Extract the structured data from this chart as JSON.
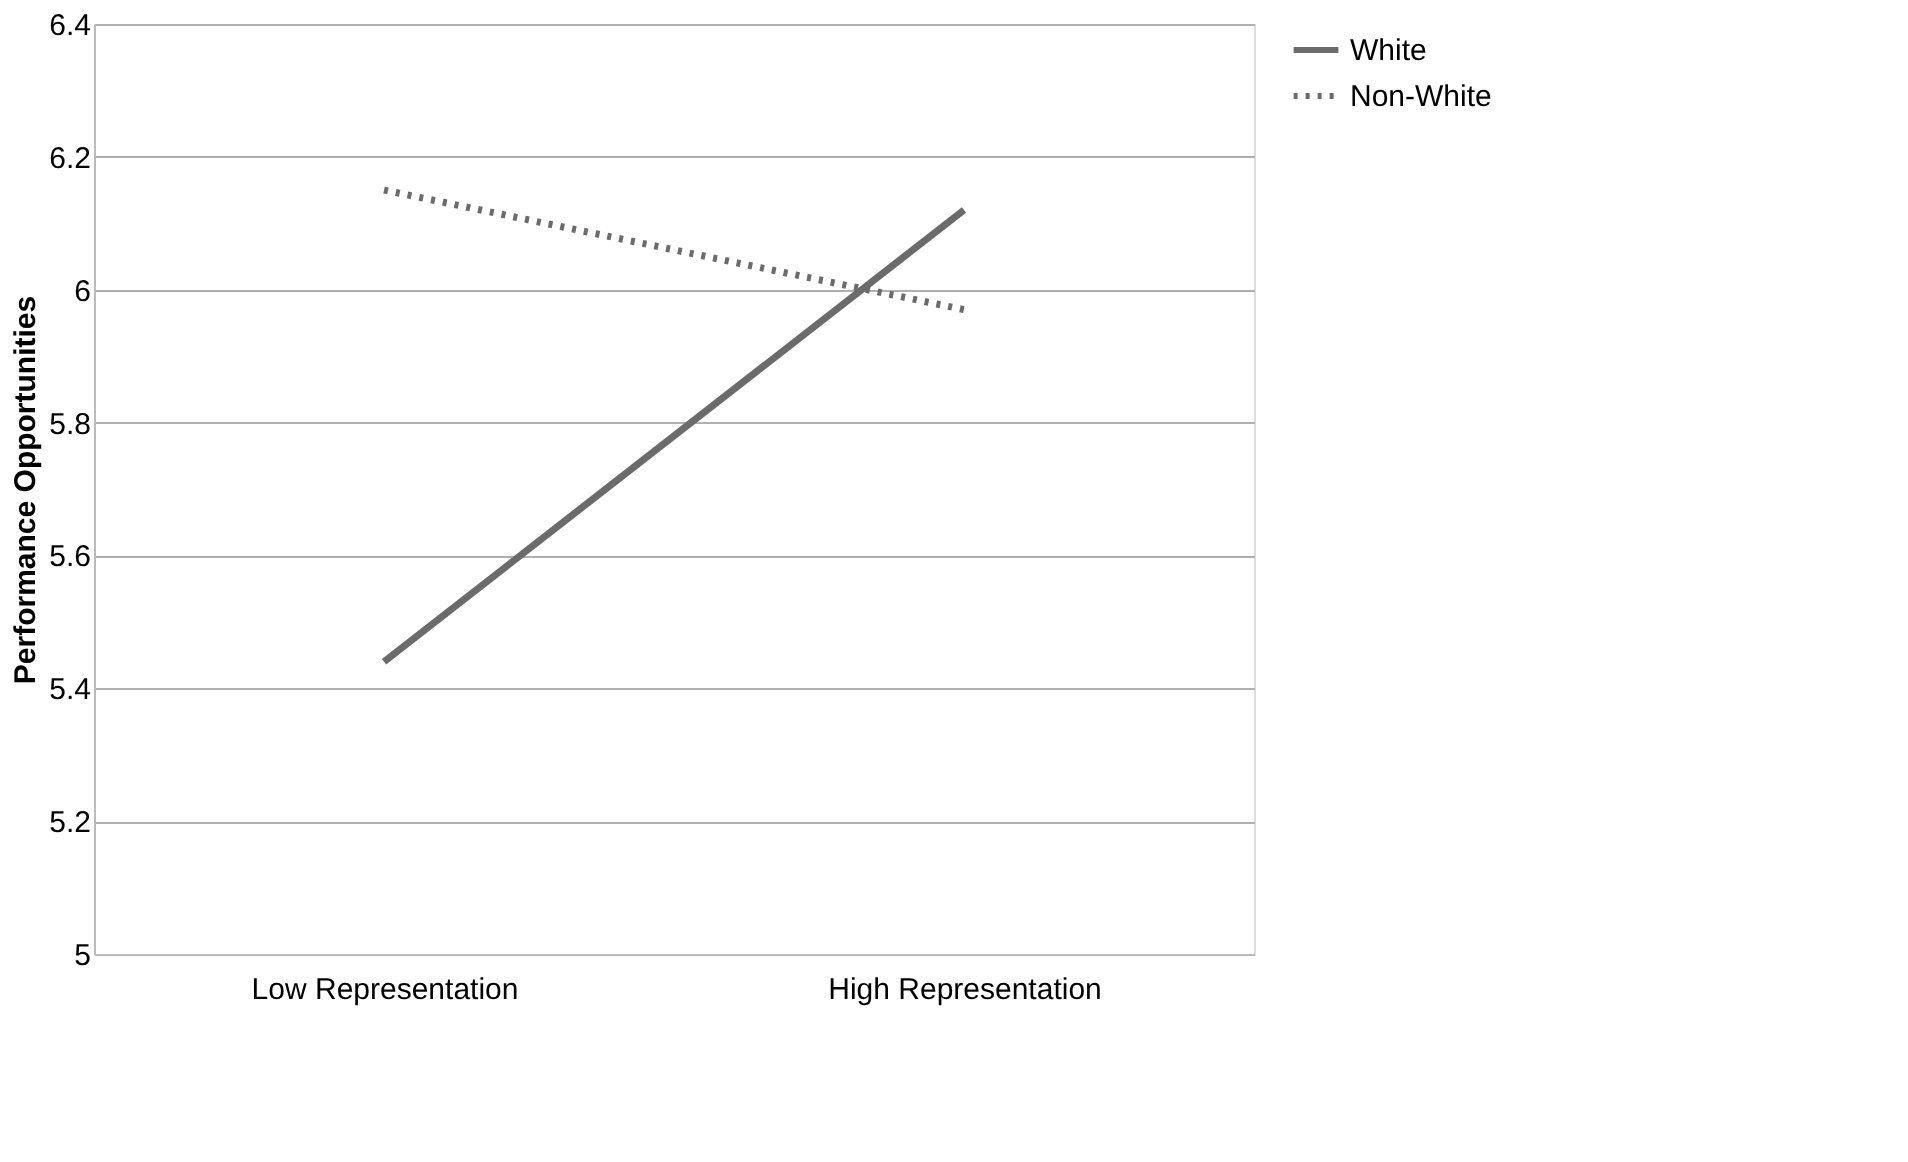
{
  "chart_data": {
    "type": "line",
    "ylabel": "Performance Opportunities",
    "categories": [
      "Low Representation",
      "High Representation"
    ],
    "series": [
      {
        "name": "White",
        "color": "#6b6b6b",
        "values": [
          5.44,
          6.12
        ],
        "line_style": "solid"
      },
      {
        "name": "Non-White",
        "color": "#6b6b6b",
        "values": [
          6.15,
          5.97
        ],
        "line_style": "dotted"
      }
    ],
    "ylim": [
      5,
      6.4
    ],
    "yticks": [
      5,
      5.2,
      5.4,
      5.6,
      5.8,
      6,
      6.2,
      6.4
    ],
    "grid": "y",
    "legend": "right",
    "marker": "none"
  }
}
